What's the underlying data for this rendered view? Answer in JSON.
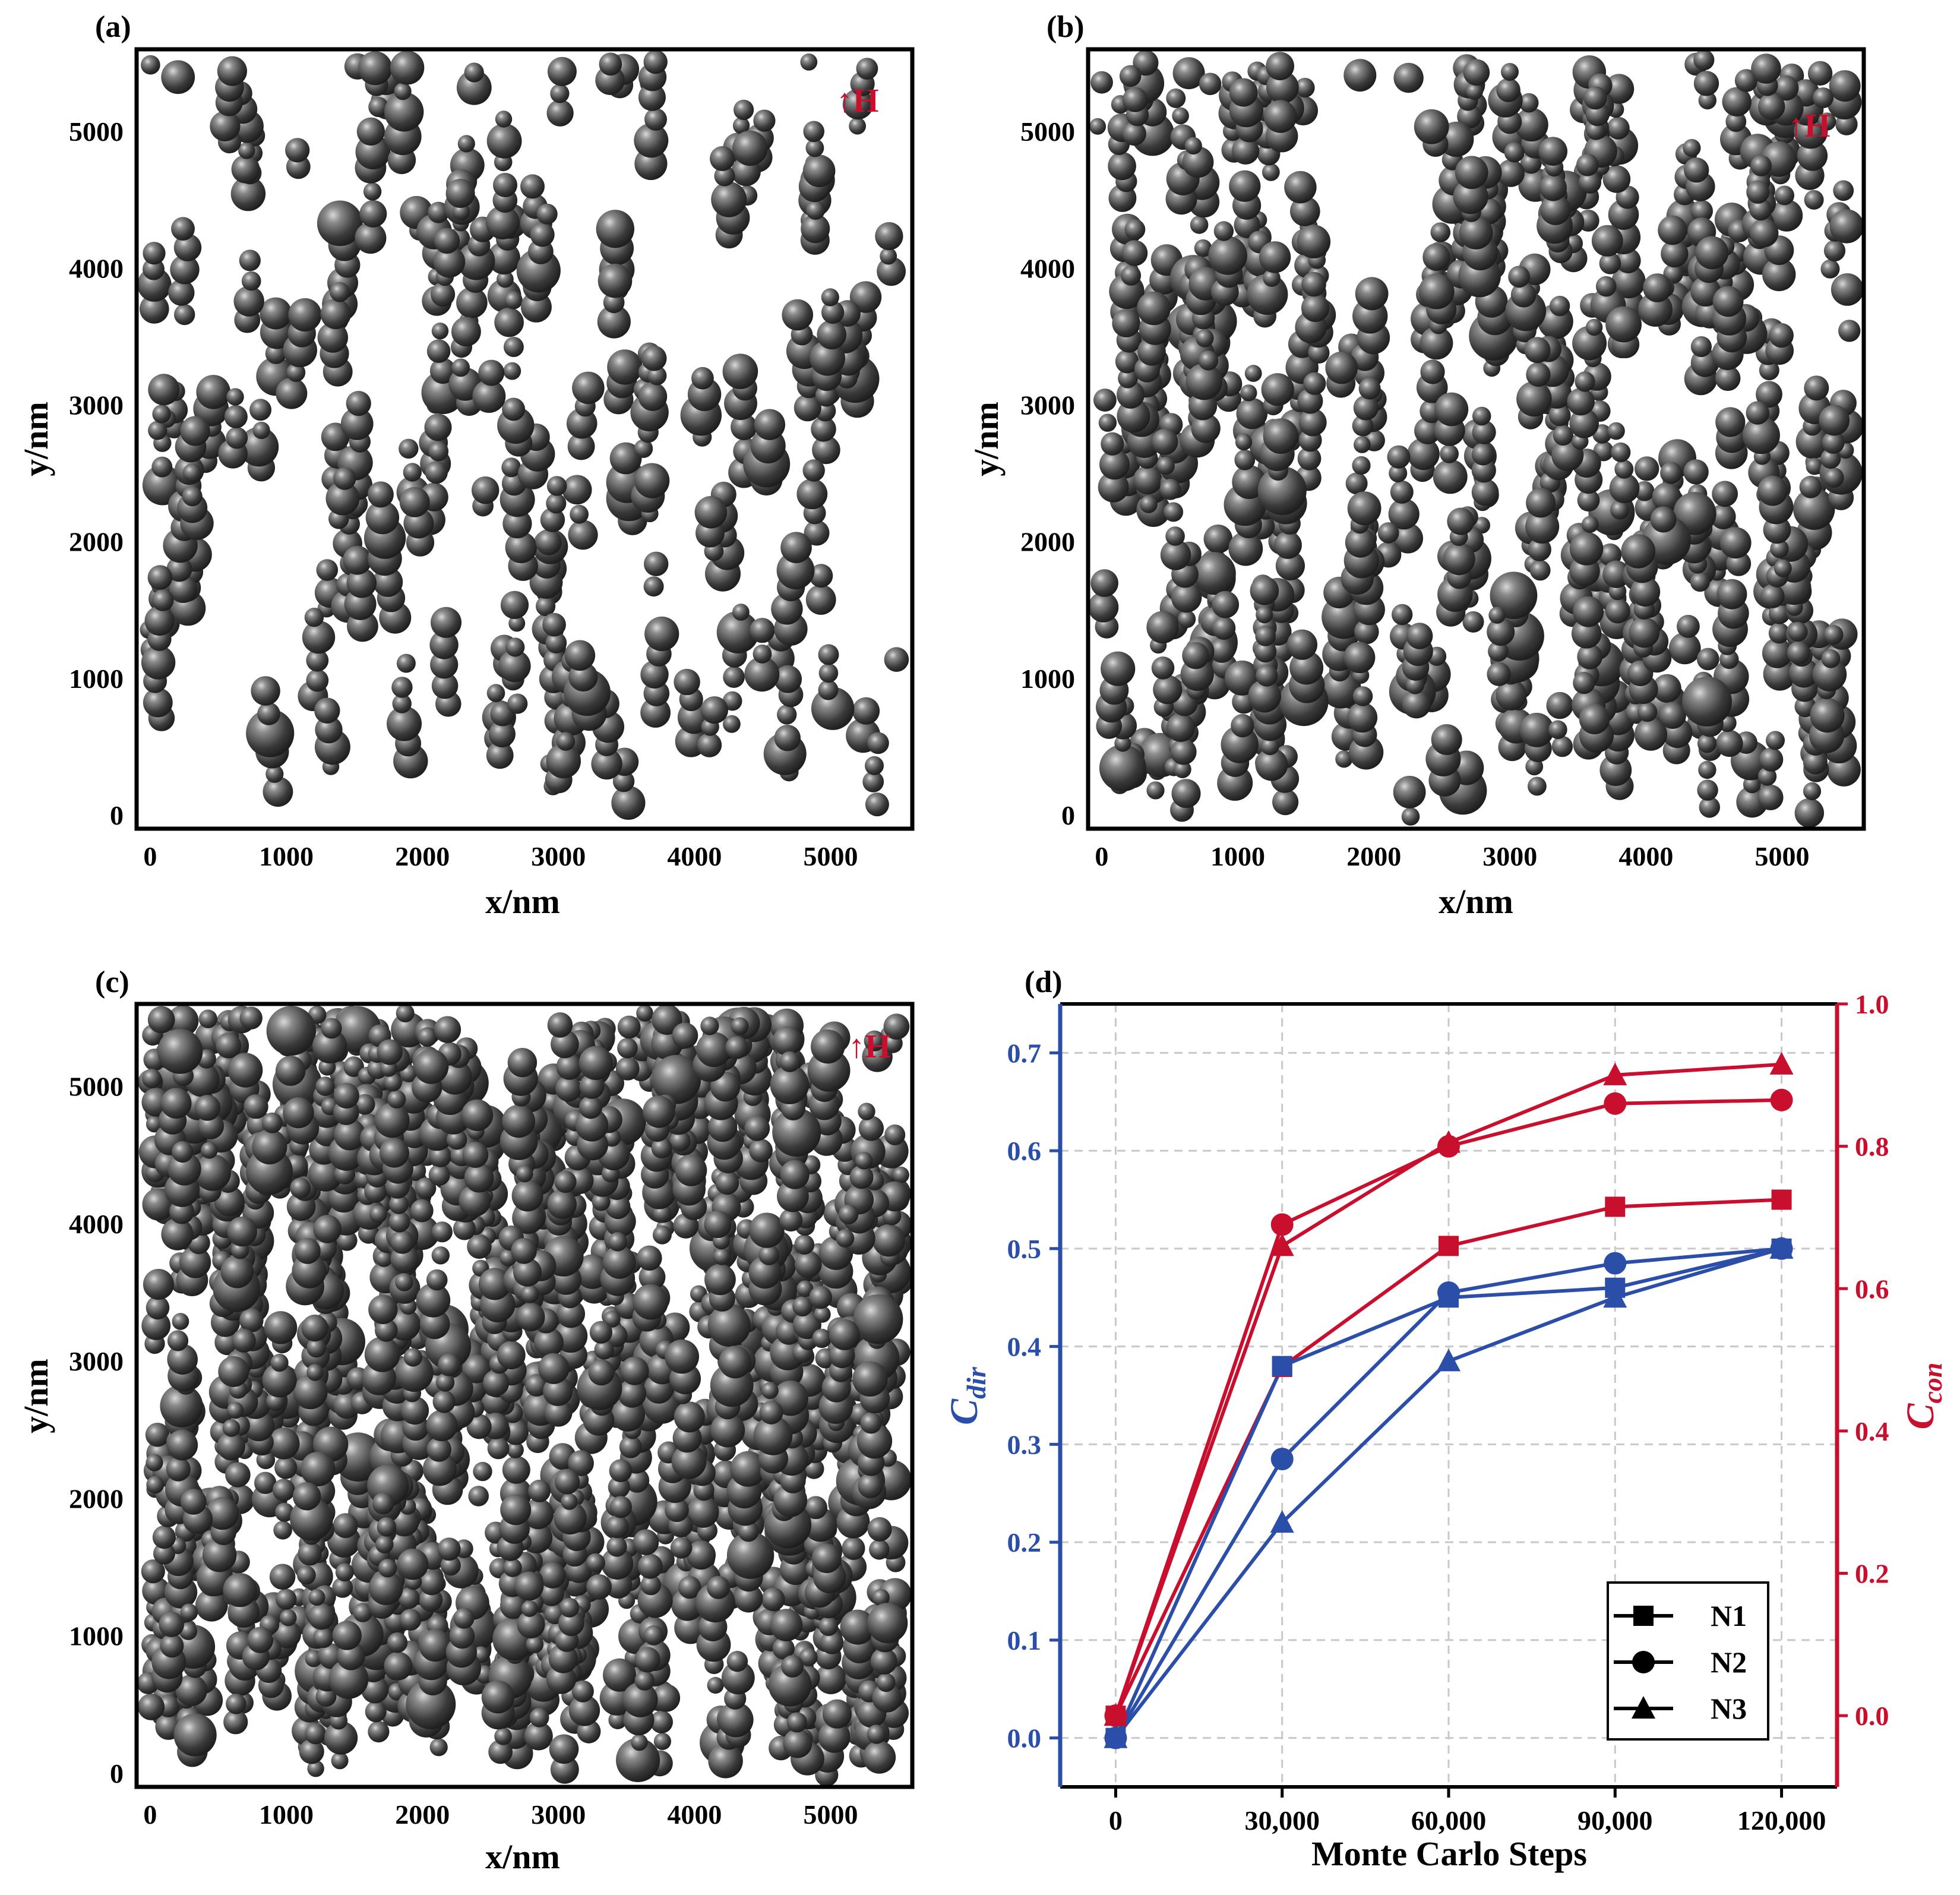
{
  "panels": [
    {
      "label": "(a)",
      "field_label": "↑H",
      "xlabel": "x/nm",
      "ylabel": "y/nm",
      "xticks": [
        "0",
        "1000",
        "2000",
        "3000",
        "4000",
        "5000"
      ],
      "yticks": [
        "0",
        "1000",
        "2000",
        "3000",
        "4000",
        "5000"
      ],
      "xlim": [
        -100,
        5600
      ],
      "ylim": [
        -100,
        5600
      ],
      "particle_color": "#3a3a3a",
      "chain_count": 135,
      "seed": 11
    },
    {
      "label": "(b)",
      "field_label": "↑H",
      "xlabel": "x/nm",
      "ylabel": "y/nm",
      "xticks": [
        "0",
        "1000",
        "2000",
        "3000",
        "4000",
        "5000"
      ],
      "yticks": [
        "0",
        "1000",
        "2000",
        "3000",
        "4000",
        "5000"
      ],
      "xlim": [
        -100,
        5600
      ],
      "ylim": [
        -100,
        5600
      ],
      "particle_color": "#3a3a3a",
      "chain_count": 270,
      "seed": 23
    },
    {
      "label": "(c)",
      "field_label": "↑H",
      "xlabel": "x/nm",
      "ylabel": "y/nm",
      "xticks": [
        "0",
        "1000",
        "2000",
        "3000",
        "4000",
        "5000"
      ],
      "yticks": [
        "0",
        "1000",
        "2000",
        "3000",
        "4000",
        "5000"
      ],
      "xlim": [
        -100,
        5600
      ],
      "ylim": [
        -100,
        5600
      ],
      "particle_color": "#3a3a3a",
      "chain_count": 560,
      "seed": 37
    }
  ],
  "chart_data": {
    "type": "line",
    "label": "(d)",
    "xlabel": "Monte Carlo Steps",
    "x": [
      0,
      30000,
      60000,
      90000,
      120000
    ],
    "x_tick_labels": [
      "0",
      "30,000",
      "60,000",
      "90,000",
      "120,000"
    ],
    "xlim": [
      -10000,
      130000
    ],
    "left_axis": {
      "label": "C",
      "label_sub": "dir",
      "color": "#2b4ea8",
      "ylim": [
        -0.05,
        0.75
      ],
      "ticks": [
        "0.0",
        "0.1",
        "0.2",
        "0.3",
        "0.4",
        "0.5",
        "0.6",
        "0.7"
      ]
    },
    "right_axis": {
      "label": "C",
      "label_sub": "con",
      "color": "#c8102e",
      "ylim": [
        -0.1,
        1.0
      ],
      "ticks": [
        "0.0",
        "0.2",
        "0.4",
        "0.6",
        "0.8",
        "1.0"
      ]
    },
    "series": [
      {
        "name": "N1",
        "marker": "square",
        "c_dir": [
          0.0,
          0.38,
          0.45,
          0.46,
          0.5
        ],
        "c_con": [
          0.0,
          0.49,
          0.66,
          0.715,
          0.725
        ]
      },
      {
        "name": "N2",
        "marker": "circle",
        "c_dir": [
          0.0,
          0.285,
          0.455,
          0.485,
          0.5
        ],
        "c_con": [
          0.0,
          0.69,
          0.8,
          0.86,
          0.865
        ]
      },
      {
        "name": "N3",
        "marker": "triangle",
        "c_dir": [
          0.0,
          0.22,
          0.385,
          0.45,
          0.5
        ],
        "c_con": [
          0.0,
          0.66,
          0.805,
          0.9,
          0.915
        ]
      }
    ],
    "legend": [
      "N1",
      "N2",
      "N3"
    ]
  }
}
